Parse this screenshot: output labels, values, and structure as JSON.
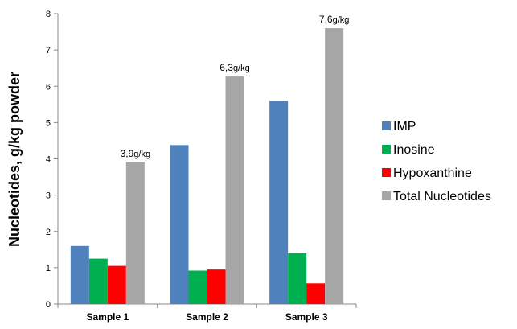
{
  "chart_data": {
    "type": "bar",
    "title": "",
    "xlabel": "",
    "ylabel": "Nucleotides, g/kg powder",
    "ylim": [
      0,
      8
    ],
    "yticks": [
      "0",
      "1",
      "2",
      "3",
      "4",
      "5",
      "6",
      "7",
      "8"
    ],
    "grid": false,
    "legend_position": "right",
    "categories": [
      "Sample 1",
      "Sample 2",
      "Sample 3"
    ],
    "series": [
      {
        "name": "IMP",
        "color": "#4F81BD",
        "values": [
          1.6,
          4.38,
          5.6
        ]
      },
      {
        "name": "Inosine",
        "color": "#00B050",
        "values": [
          1.25,
          0.92,
          1.4
        ]
      },
      {
        "name": "Hypoxanthine",
        "color": "#FF0000",
        "values": [
          1.05,
          0.95,
          0.57
        ]
      },
      {
        "name": "Total Nucleotides",
        "color": "#A6A6A6",
        "values": [
          3.9,
          6.27,
          7.6
        ]
      }
    ],
    "annotations": [
      {
        "category": "Sample 1",
        "series": "Total Nucleotides",
        "value": "3,9",
        "unit": "g/kg"
      },
      {
        "category": "Sample 2",
        "series": "Total Nucleotides",
        "value": "6,3",
        "unit": "g/kg"
      },
      {
        "category": "Sample 3",
        "series": "Total Nucleotides",
        "value": "7,6",
        "unit": "g/kg"
      }
    ]
  }
}
